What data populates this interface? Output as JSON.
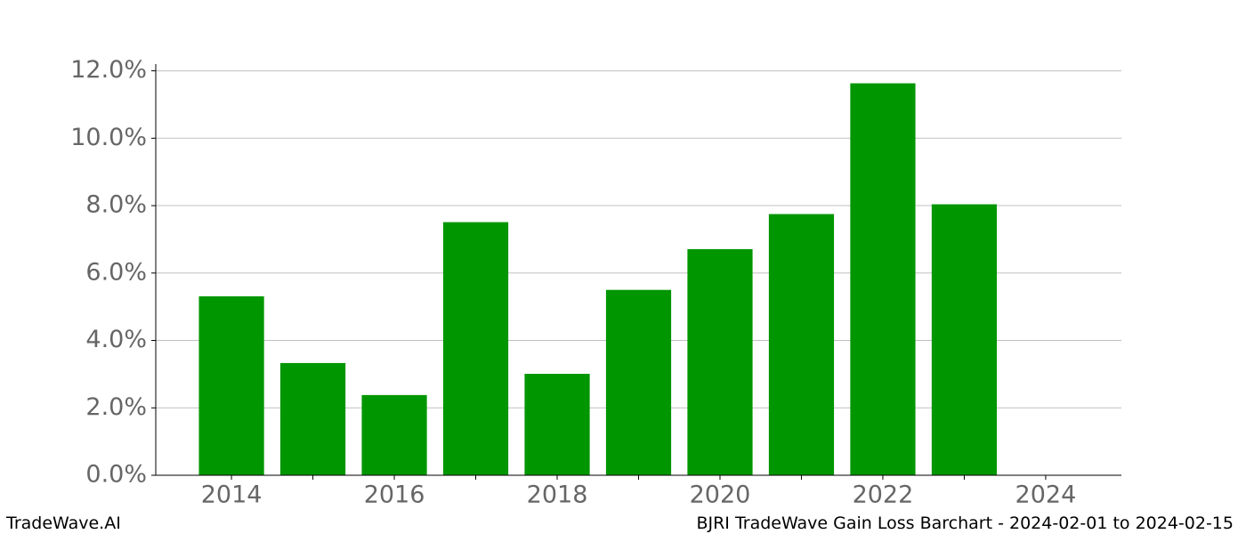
{
  "chart_data": {
    "type": "bar",
    "x": [
      2014,
      2015,
      2016,
      2017,
      2018,
      2019,
      2020,
      2021,
      2022,
      2023
    ],
    "values": [
      5.31,
      3.33,
      2.38,
      7.51,
      3.01,
      5.5,
      6.71,
      7.75,
      11.63,
      8.04
    ],
    "color": "#009600",
    "bar_width": 0.8,
    "xlim": [
      2013.07,
      2024.93
    ],
    "xticks": [
      2014,
      2016,
      2018,
      2020,
      2022,
      2024
    ],
    "xminorticks": [
      2015,
      2017,
      2019,
      2021,
      2023
    ],
    "ylim": [
      0,
      12.2
    ],
    "yticks": [
      {
        "value": 0,
        "label": "0.0%"
      },
      {
        "value": 2,
        "label": "2.0%"
      },
      {
        "value": 4,
        "label": "4.0%"
      },
      {
        "value": 6,
        "label": "6.0%"
      },
      {
        "value": 8,
        "label": "8.0%"
      },
      {
        "value": 10,
        "label": "10.0%"
      },
      {
        "value": 12,
        "label": "12.0%"
      }
    ],
    "grid": true
  },
  "footer": {
    "left": "TradeWave.AI",
    "right": "BJRI TradeWave Gain Loss Barchart - 2024-02-01 to 2024-02-15"
  }
}
